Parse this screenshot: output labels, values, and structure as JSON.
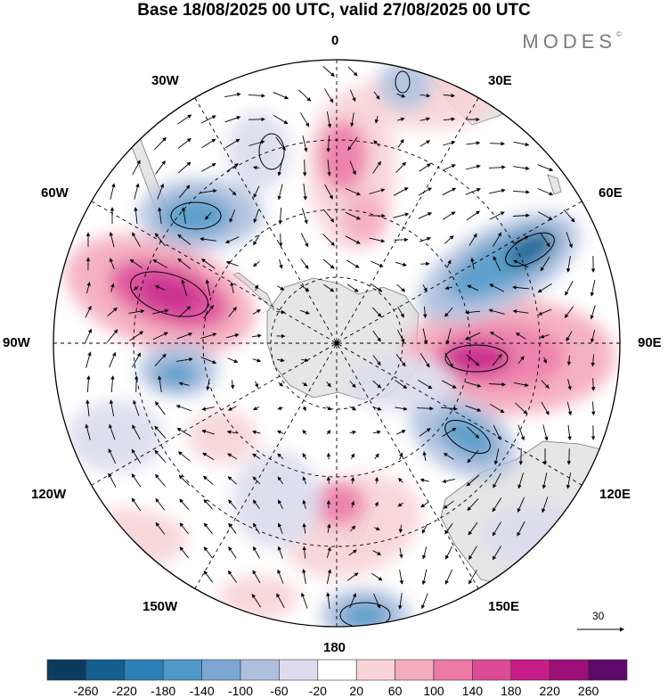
{
  "title": "Base 18/08/2025 00 UTC, valid 27/08/2025 00 UTC",
  "brand": "MODES",
  "brand_mark": "©",
  "longitude_labels": {
    "top": "0",
    "top_right": "30E",
    "right_upper": "60E",
    "right": "90E",
    "right_lower": "120E",
    "bottom_right": "150E",
    "bottom": "180",
    "bottom_left": "150W",
    "left_lower": "120W",
    "left": "90W",
    "left_upper": "60W",
    "top_left": "30W"
  },
  "reference_vector": "30",
  "colorbar": {
    "ticks": [
      "-260",
      "-220",
      "-180",
      "-140",
      "-100",
      "-60",
      "-20",
      "20",
      "60",
      "100",
      "140",
      "180",
      "220",
      "260"
    ],
    "colors": [
      "#0b3b5e",
      "#125f90",
      "#2d7fb8",
      "#4f98c8",
      "#7ea6d3",
      "#afbfde",
      "#dcdcee",
      "#ffffff",
      "#f8d4d6",
      "#f4abbc",
      "#ec79a6",
      "#dd4a97",
      "#c61c87",
      "#9c0f79",
      "#5f0a6b"
    ]
  },
  "colors": {
    "land": "#e6e6e6",
    "coast": "#707070",
    "grid": "#000000"
  }
}
